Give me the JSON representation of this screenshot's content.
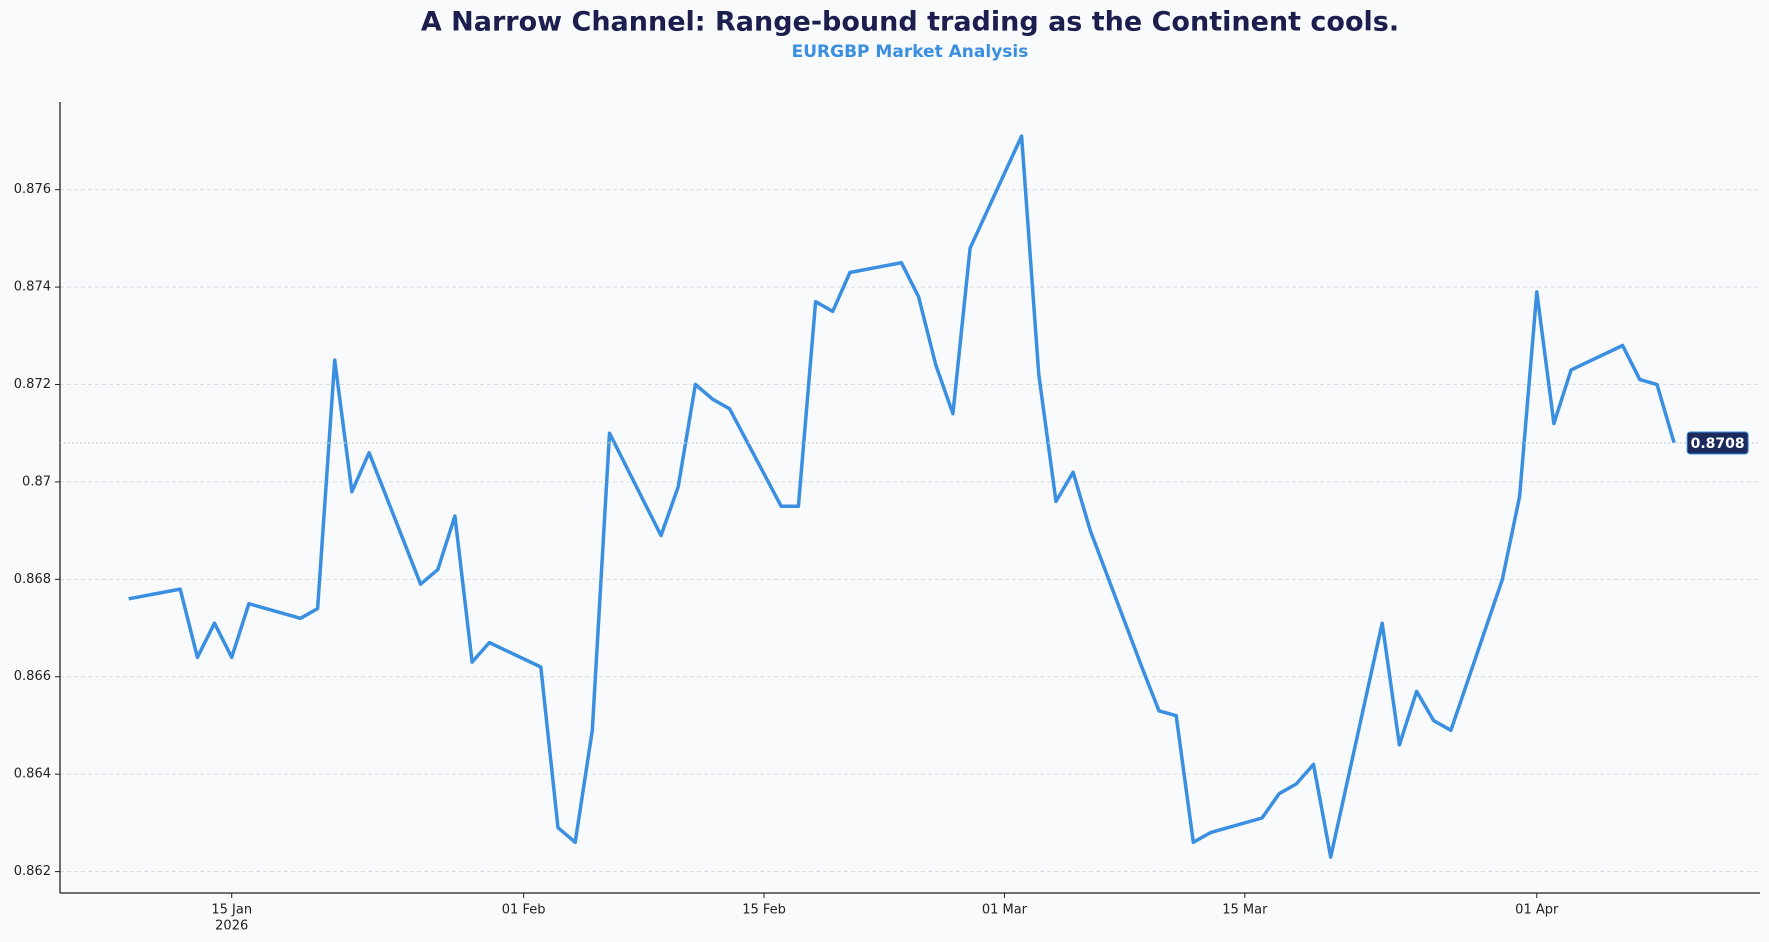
{
  "chart_data": {
    "type": "line",
    "title": "A Narrow Channel: Range-bound trading as the Continent cools.",
    "subtitle": "EURGBP Market Analysis",
    "x": [
      "2026-01-09",
      "2026-01-12",
      "2026-01-13",
      "2026-01-14",
      "2026-01-15",
      "2026-01-16",
      "2026-01-19",
      "2026-01-20",
      "2026-01-21",
      "2026-01-22",
      "2026-01-23",
      "2026-01-26",
      "2026-01-27",
      "2026-01-28",
      "2026-01-29",
      "2026-01-30",
      "2026-02-02",
      "2026-02-03",
      "2026-02-04",
      "2026-02-05",
      "2026-02-06",
      "2026-02-09",
      "2026-02-10",
      "2026-02-11",
      "2026-02-12",
      "2026-02-13",
      "2026-02-16",
      "2026-02-17",
      "2026-02-18",
      "2026-02-19",
      "2026-02-20",
      "2026-02-23",
      "2026-02-24",
      "2026-02-25",
      "2026-02-26",
      "2026-02-27",
      "2026-03-02",
      "2026-03-03",
      "2026-03-04",
      "2026-03-05",
      "2026-03-06",
      "2026-03-09",
      "2026-03-10",
      "2026-03-11",
      "2026-03-12",
      "2026-03-13",
      "2026-03-16",
      "2026-03-17",
      "2026-03-18",
      "2026-03-19",
      "2026-03-20",
      "2026-03-23",
      "2026-03-24",
      "2026-03-25",
      "2026-03-26",
      "2026-03-27",
      "2026-03-30",
      "2026-03-31",
      "2026-04-01",
      "2026-04-02",
      "2026-04-03",
      "2026-04-06",
      "2026-04-07",
      "2026-04-08",
      "2026-04-09"
    ],
    "values": [
      0.8676,
      0.8678,
      0.8664,
      0.8671,
      0.8664,
      0.8675,
      0.8672,
      0.8674,
      0.8725,
      0.8698,
      0.8706,
      0.8679,
      0.8682,
      0.8693,
      0.8663,
      0.8667,
      0.8662,
      0.8629,
      0.8626,
      0.8649,
      0.871,
      0.8689,
      0.8699,
      0.872,
      0.8717,
      0.8715,
      0.8695,
      0.8695,
      0.8737,
      0.8735,
      0.8743,
      0.8745,
      0.8738,
      0.8724,
      0.8714,
      0.8748,
      0.8771,
      0.8722,
      0.8696,
      0.8702,
      0.869,
      0.8662,
      0.8653,
      0.8652,
      0.8626,
      0.8628,
      0.8631,
      0.8636,
      0.8638,
      0.8642,
      0.8623,
      0.8671,
      0.8646,
      0.8657,
      0.8651,
      0.8649,
      0.868,
      0.8697,
      0.8739,
      0.8712,
      0.8723,
      0.8728,
      0.8721,
      0.872,
      0.8708
    ],
    "color": "#3a8fe0",
    "xlim": [
      "2026-01-05",
      "2026-04-14"
    ],
    "xticks": [
      {
        "value": "2026-01-15",
        "label": "15 Jan",
        "sublabel": "2026"
      },
      {
        "value": "2026-02-01",
        "label": "01 Feb"
      },
      {
        "value": "2026-02-15",
        "label": "15 Feb"
      },
      {
        "value": "2026-03-01",
        "label": "01 Mar"
      },
      {
        "value": "2026-03-15",
        "label": "15 Mar"
      },
      {
        "value": "2026-04-01",
        "label": "01 Apr"
      }
    ],
    "ylim": [
      0.86156,
      0.8778
    ],
    "yticks": [
      0.862,
      0.864,
      0.866,
      0.868,
      0.87,
      0.872,
      0.874,
      0.876
    ],
    "grid": true
  }
}
